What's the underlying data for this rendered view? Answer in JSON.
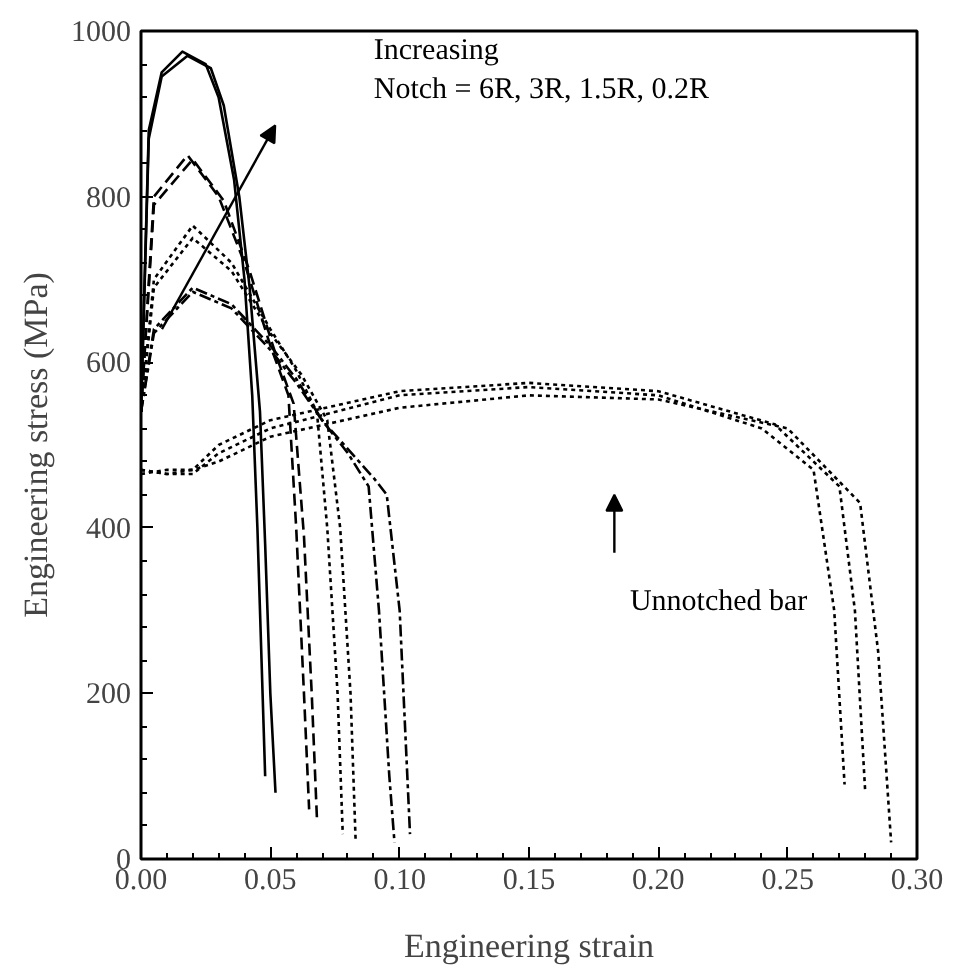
{
  "chart_data": {
    "type": "line",
    "xlabel": "Engineering strain",
    "ylabel": "Engineering stress (MPa)",
    "xlim": [
      0,
      0.3
    ],
    "ylim": [
      0,
      1000
    ],
    "xticks": [
      {
        "value": 0,
        "label": "0.00"
      },
      {
        "value": 0.05,
        "label": "0.05"
      },
      {
        "value": 0.1,
        "label": "0.10"
      },
      {
        "value": 0.15,
        "label": "0.15"
      },
      {
        "value": 0.2,
        "label": "0.20"
      },
      {
        "value": 0.25,
        "label": "0.25"
      },
      {
        "value": 0.3,
        "label": "0.30"
      }
    ],
    "yticks": [
      0,
      200,
      400,
      600,
      800,
      1000
    ],
    "series": [
      {
        "color": "#000000",
        "line_style": "solid",
        "x": [
          0,
          0.003,
          0.008,
          0.016,
          0.025,
          0.03,
          0.036,
          0.04,
          0.043,
          0.045,
          0.047,
          0.048
        ],
        "values": [
          540,
          880,
          950,
          975,
          960,
          920,
          820,
          700,
          560,
          400,
          200,
          100
        ]
      },
      {
        "color": "#000000",
        "line_style": "solid",
        "x": [
          0,
          0.003,
          0.008,
          0.018,
          0.027,
          0.032,
          0.038,
          0.042,
          0.046,
          0.048,
          0.05,
          0.052
        ],
        "values": [
          540,
          870,
          945,
          970,
          955,
          910,
          800,
          690,
          540,
          380,
          200,
          80
        ]
      },
      {
        "color": "#000000",
        "line_style": "dashed",
        "x": [
          0,
          0.005,
          0.018,
          0.03,
          0.04,
          0.05,
          0.057,
          0.06,
          0.063,
          0.065
        ],
        "values": [
          540,
          800,
          850,
          800,
          720,
          620,
          560,
          400,
          200,
          60
        ]
      },
      {
        "color": "#000000",
        "line_style": "dashed",
        "x": [
          0,
          0.005,
          0.02,
          0.032,
          0.042,
          0.052,
          0.059,
          0.063,
          0.066,
          0.068
        ],
        "values": [
          540,
          790,
          845,
          795,
          710,
          610,
          550,
          390,
          200,
          50
        ]
      },
      {
        "color": "#000000",
        "line_style": "dotted",
        "x": [
          0,
          0.005,
          0.02,
          0.035,
          0.05,
          0.06,
          0.068,
          0.072,
          0.076,
          0.078
        ],
        "values": [
          540,
          700,
          765,
          720,
          640,
          590,
          540,
          400,
          200,
          30
        ]
      },
      {
        "color": "#000000",
        "line_style": "dotted",
        "x": [
          0,
          0.005,
          0.02,
          0.035,
          0.05,
          0.062,
          0.072,
          0.077,
          0.081,
          0.083
        ],
        "values": [
          540,
          690,
          750,
          710,
          635,
          585,
          530,
          400,
          200,
          20
        ]
      },
      {
        "color": "#000000",
        "line_style": "dashdot",
        "x": [
          0,
          0.005,
          0.02,
          0.035,
          0.05,
          0.06,
          0.07,
          0.08,
          0.088,
          0.092,
          0.096,
          0.098
        ],
        "values": [
          540,
          640,
          690,
          670,
          620,
          580,
          530,
          490,
          450,
          300,
          100,
          20
        ]
      },
      {
        "color": "#000000",
        "line_style": "dashdot",
        "x": [
          0,
          0.005,
          0.02,
          0.035,
          0.05,
          0.06,
          0.07,
          0.08,
          0.09,
          0.095,
          0.1,
          0.104
        ],
        "values": [
          540,
          635,
          685,
          665,
          615,
          575,
          530,
          495,
          460,
          440,
          300,
          30
        ]
      },
      {
        "color": "#000000",
        "line_style": "dotted",
        "x": [
          0,
          0.01,
          0.02,
          0.03,
          0.05,
          0.1,
          0.15,
          0.2,
          0.24,
          0.26,
          0.268,
          0.272
        ],
        "values": [
          470,
          465,
          465,
          490,
          520,
          560,
          570,
          560,
          520,
          470,
          300,
          90
        ]
      },
      {
        "color": "#000000",
        "line_style": "dotted",
        "x": [
          0,
          0.01,
          0.02,
          0.03,
          0.05,
          0.1,
          0.15,
          0.2,
          0.245,
          0.27,
          0.276,
          0.28
        ],
        "values": [
          470,
          465,
          470,
          500,
          530,
          565,
          575,
          565,
          525,
          450,
          300,
          80
        ]
      },
      {
        "color": "#000000",
        "line_style": "dotted",
        "x": [
          0,
          0.01,
          0.02,
          0.03,
          0.05,
          0.1,
          0.15,
          0.2,
          0.25,
          0.278,
          0.285,
          0.29
        ],
        "values": [
          465,
          470,
          470,
          480,
          510,
          545,
          560,
          555,
          520,
          430,
          250,
          20
        ]
      }
    ],
    "annotations": [
      "Increasing\nNotch = 6R, 3R, 1.5R, 0.2R",
      "Unnotched bar"
    ]
  }
}
